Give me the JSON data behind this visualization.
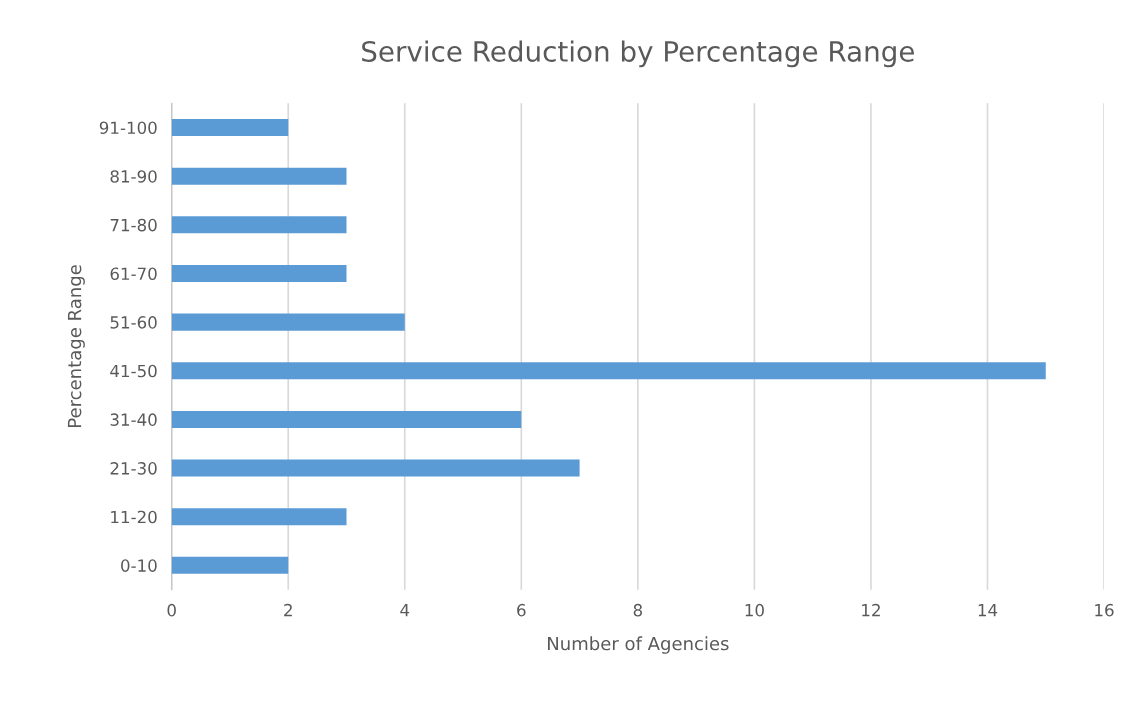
{
  "chart_data": {
    "type": "bar",
    "orientation": "horizontal",
    "title": "Service Reduction by Percentage Range",
    "xlabel": "Number of Agencies",
    "ylabel": "Percentage Range",
    "categories": [
      "91-100",
      "81-90",
      "71-80",
      "61-70",
      "51-60",
      "41-50",
      "31-40",
      "21-30",
      "11-20",
      "0-10"
    ],
    "values": [
      2,
      3,
      3,
      3,
      4,
      15,
      6,
      7,
      3,
      2
    ],
    "color": "#5b9bd5",
    "xlim": [
      0,
      16
    ],
    "xticks": [
      0,
      2,
      4,
      6,
      8,
      10,
      12,
      14,
      16
    ],
    "grid": "x"
  }
}
